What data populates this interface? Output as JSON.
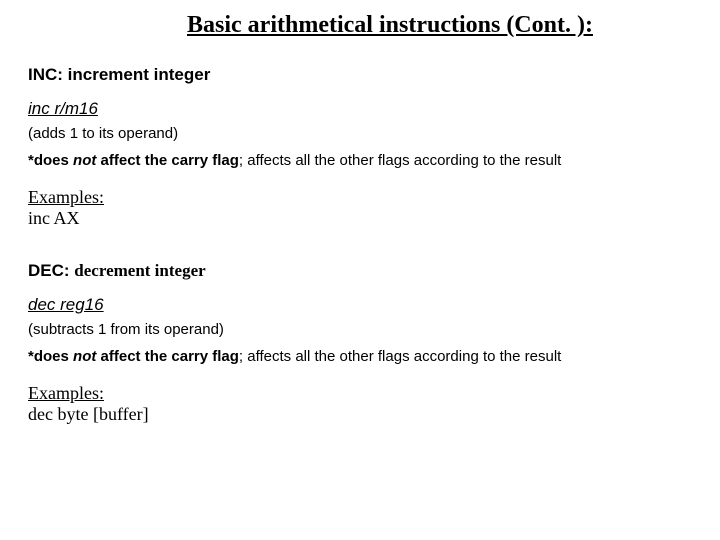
{
  "title": "Basic arithmetical instructions (Cont. ):",
  "inc": {
    "heading": "INC: increment integer",
    "syntax": "inc r/m16",
    "desc": "(adds 1 to its operand)",
    "note_asterisk": "*",
    "note_prefix": "does ",
    "note_not": "not ",
    "note_bold_tail": " affect the carry flag",
    "note_rest": "; affects all the other flags according to the result",
    "examples_label": "Examples:",
    "example": "inc AX"
  },
  "dec": {
    "heading_lead": "DEC: ",
    "heading_serif": "decrement integer",
    "syntax": "dec reg16",
    "desc": "(subtracts 1 from its operand)",
    "note_asterisk": "*",
    "note_prefix": "does ",
    "note_not": "not ",
    "note_bold_tail": " affect the carry flag",
    "note_rest": "; affects all the other flags according to the result",
    "examples_label": "Examples:",
    "example": "dec byte [buffer]"
  }
}
